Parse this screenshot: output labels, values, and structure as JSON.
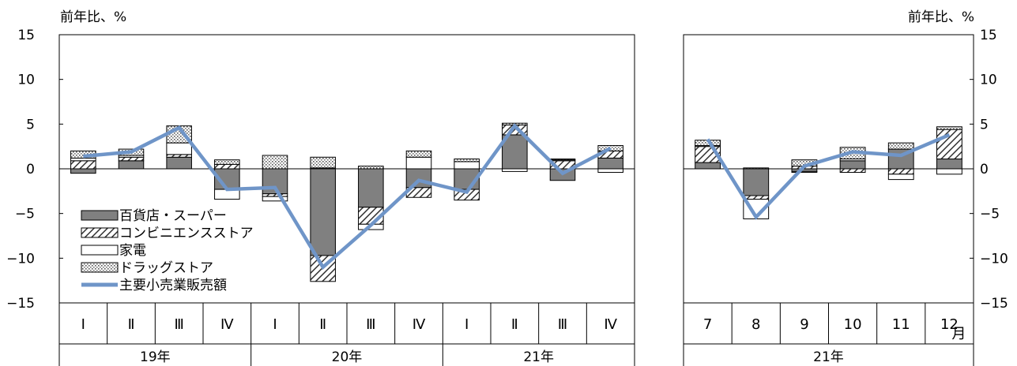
{
  "chart_data": [
    {
      "type": "bar",
      "stacked": true,
      "ylabel": "前年比、%",
      "ylim": [
        -15,
        15
      ],
      "yticks": [
        15,
        10,
        5,
        0,
        -5,
        -10,
        -15
      ],
      "categories": [
        "Ⅰ",
        "Ⅱ",
        "Ⅲ",
        "Ⅳ",
        "Ⅰ",
        "Ⅱ",
        "Ⅲ",
        "Ⅳ",
        "Ⅰ",
        "Ⅱ",
        "Ⅲ",
        "Ⅳ"
      ],
      "groups": [
        {
          "label": "19年",
          "count": 4
        },
        {
          "label": "20年",
          "count": 4
        },
        {
          "label": "21年",
          "count": 4
        }
      ],
      "legend_position": "bottom-left",
      "series": [
        {
          "name": "百貨店・スーパー",
          "kind": "bar",
          "pattern": "gray",
          "values": [
            -0.5,
            0.9,
            1.3,
            -2.3,
            -2.8,
            -9.7,
            -4.3,
            -2.1,
            -2.3,
            3.8,
            -1.3,
            1.2
          ]
        },
        {
          "name": "コンビニエンスストア",
          "kind": "bar",
          "pattern": "hatch",
          "values": [
            0.9,
            0.4,
            0.3,
            0.5,
            -0.3,
            -2.9,
            -1.9,
            -1.1,
            -1.2,
            1.1,
            0.9,
            0.8
          ]
        },
        {
          "name": "家電",
          "kind": "bar",
          "pattern": "white",
          "values": [
            0.3,
            0.2,
            1.3,
            -1.1,
            -0.5,
            0.1,
            -0.6,
            1.3,
            0.8,
            -0.3,
            0.1,
            -0.4
          ]
        },
        {
          "name": "ドラッグストア",
          "kind": "bar",
          "pattern": "dots",
          "values": [
            0.8,
            0.7,
            1.9,
            0.5,
            1.5,
            1.2,
            0.3,
            0.7,
            0.3,
            0.2,
            0.1,
            0.6
          ]
        },
        {
          "name": "主要小売業販売額",
          "kind": "line",
          "color": "#6f95c8",
          "values": [
            1.4,
            1.9,
            4.6,
            -2.3,
            -2.1,
            -11.0,
            -6.3,
            -1.3,
            -2.6,
            4.8,
            -0.5,
            2.3
          ]
        }
      ]
    },
    {
      "type": "bar",
      "stacked": true,
      "ylabel": "前年比、%",
      "ylim": [
        -15,
        15
      ],
      "yticks": [
        15,
        10,
        5,
        0,
        -5,
        -10,
        -15
      ],
      "categories": [
        "7",
        "8",
        "9",
        "10",
        "11",
        "12"
      ],
      "month_suffix": "月",
      "groups": [
        {
          "label": "21年",
          "count": 6
        }
      ],
      "series": [
        {
          "name": "百貨店・スーパー",
          "kind": "bar",
          "pattern": "gray",
          "values": [
            0.7,
            -3.0,
            -0.3,
            0.9,
            2.2,
            1.1
          ]
        },
        {
          "name": "コンビニエンスストア",
          "kind": "bar",
          "pattern": "hatch",
          "values": [
            1.8,
            -0.4,
            0.3,
            -0.4,
            -0.6,
            3.3
          ]
        },
        {
          "name": "家電",
          "kind": "bar",
          "pattern": "white",
          "values": [
            0.1,
            -2.2,
            -0.1,
            0.2,
            -0.6,
            -0.6
          ]
        },
        {
          "name": "ドラッグストア",
          "kind": "bar",
          "pattern": "dots",
          "values": [
            0.6,
            0.1,
            0.7,
            1.3,
            0.7,
            0.3
          ]
        },
        {
          "name": "主要小売業販売額",
          "kind": "line",
          "color": "#6f95c8",
          "values": [
            3.3,
            -5.4,
            0.3,
            1.9,
            1.5,
            3.8
          ]
        }
      ]
    }
  ]
}
